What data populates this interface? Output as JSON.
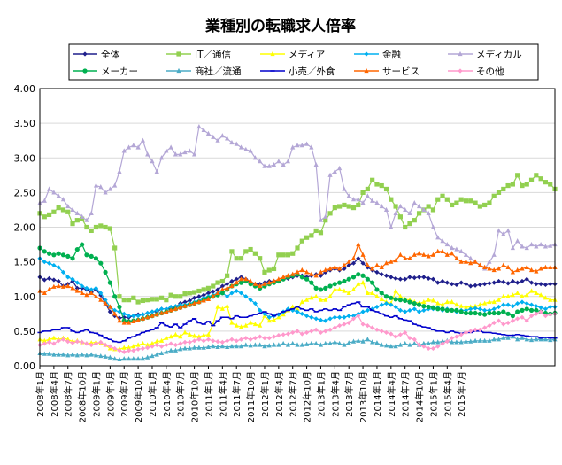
{
  "chart_data": {
    "type": "line",
    "title": "業種別の転職求人倍率",
    "ylim": [
      0,
      4.0
    ],
    "yticks": [
      "0.00",
      "0.50",
      "1.00",
      "1.50",
      "2.00",
      "2.50",
      "3.00",
      "3.50",
      "4.00"
    ],
    "xticks": [
      "2008年1月",
      "2008年4月",
      "2008年7月",
      "2008年10月",
      "2009年1月",
      "2009年4月",
      "2009年7月",
      "2009年10月",
      "2010年1月",
      "2010年4月",
      "2010年7月",
      "2010年10月",
      "2011年1月",
      "2011年4月",
      "2011年7月",
      "2011年10月",
      "2012年1月",
      "2012年4月",
      "2012年7月",
      "2012年10月",
      "2013年1月",
      "2013年4月",
      "2013年7月",
      "2013年10月",
      "2014年1月",
      "2014年4月",
      "2014年7月",
      "2014年10月",
      "2015年1月",
      "2015年4月",
      "2015年7月"
    ],
    "grid": true,
    "legend_position": "top",
    "series": [
      {
        "name": "全体",
        "color": "#1f1f8c",
        "marker": "diamond",
        "values": [
          1.28,
          1.24,
          1.26,
          1.24,
          1.22,
          1.15,
          1.18,
          1.22,
          1.12,
          1.12,
          1.1,
          1.06,
          1.1,
          1.02,
          0.9,
          0.78,
          0.72,
          0.69,
          0.7,
          0.7,
          0.72,
          0.74,
          0.74,
          0.76,
          0.78,
          0.78,
          0.82,
          0.82,
          0.82,
          0.85,
          0.9,
          0.92,
          0.94,
          0.98,
          1.0,
          1.02,
          1.05,
          1.07,
          1.1,
          1.15,
          1.18,
          1.22,
          1.25,
          1.28,
          1.25,
          1.2,
          1.18,
          1.18,
          1.2,
          1.22,
          1.22,
          1.22,
          1.25,
          1.26,
          1.28,
          1.3,
          1.3,
          1.28,
          1.3,
          1.32,
          1.3,
          1.35,
          1.38,
          1.4,
          1.38,
          1.4,
          1.45,
          1.48,
          1.55,
          1.48,
          1.42,
          1.38,
          1.35,
          1.32,
          1.3,
          1.28,
          1.26,
          1.25,
          1.25,
          1.28,
          1.27,
          1.28,
          1.28,
          1.26,
          1.25,
          1.2,
          1.22,
          1.2,
          1.18,
          1.17,
          1.2,
          1.18,
          1.15,
          1.16,
          1.17,
          1.18,
          1.19,
          1.2,
          1.22,
          1.21,
          1.19,
          1.22,
          1.2,
          1.22,
          1.25,
          1.2,
          1.18,
          1.18,
          1.17,
          1.18,
          1.18
        ]
      },
      {
        "name": "IT／通信",
        "color": "#92d050",
        "marker": "square",
        "values": [
          2.2,
          2.15,
          2.18,
          2.22,
          2.28,
          2.25,
          2.22,
          2.05,
          2.1,
          2.12,
          2.0,
          1.95,
          2.0,
          2.02,
          2.0,
          1.98,
          1.7,
          1.0,
          0.95,
          0.95,
          0.98,
          0.92,
          0.94,
          0.95,
          0.96,
          0.96,
          0.98,
          0.95,
          1.02,
          1.0,
          1.0,
          1.04,
          1.05,
          1.06,
          1.08,
          1.1,
          1.12,
          1.15,
          1.2,
          1.22,
          1.3,
          1.65,
          1.55,
          1.55,
          1.65,
          1.68,
          1.62,
          1.55,
          1.35,
          1.38,
          1.4,
          1.6,
          1.6,
          1.6,
          1.62,
          1.7,
          1.8,
          1.85,
          1.88,
          1.95,
          1.92,
          2.1,
          2.2,
          2.28,
          2.3,
          2.32,
          2.3,
          2.28,
          2.32,
          2.5,
          2.55,
          2.68,
          2.62,
          2.6,
          2.55,
          2.4,
          2.3,
          2.15,
          2.0,
          2.05,
          2.1,
          2.2,
          2.25,
          2.3,
          2.25,
          2.4,
          2.45,
          2.4,
          2.32,
          2.35,
          2.4,
          2.38,
          2.38,
          2.35,
          2.3,
          2.32,
          2.35,
          2.45,
          2.5,
          2.55,
          2.6,
          2.62,
          2.75,
          2.6,
          2.62,
          2.68,
          2.75,
          2.7,
          2.65,
          2.62,
          2.55
        ]
      },
      {
        "name": "メディア",
        "color": "#ffff00",
        "marker": "triangle",
        "values": [
          0.38,
          0.36,
          0.38,
          0.4,
          0.38,
          0.4,
          0.38,
          0.35,
          0.36,
          0.34,
          0.32,
          0.33,
          0.34,
          0.32,
          0.3,
          0.25,
          0.24,
          0.24,
          0.26,
          0.26,
          0.28,
          0.3,
          0.32,
          0.3,
          0.32,
          0.35,
          0.36,
          0.4,
          0.42,
          0.45,
          0.42,
          0.48,
          0.45,
          0.43,
          0.42,
          0.44,
          0.45,
          0.6,
          0.85,
          0.82,
          0.86,
          0.62,
          0.58,
          0.56,
          0.58,
          0.62,
          0.6,
          0.58,
          0.72,
          0.65,
          0.66,
          0.7,
          0.74,
          0.8,
          0.85,
          0.82,
          0.92,
          0.95,
          0.98,
          1.0,
          0.95,
          0.95,
          1.0,
          1.1,
          1.1,
          1.08,
          1.05,
          1.1,
          1.18,
          1.2,
          1.05,
          1.05,
          1.0,
          0.96,
          0.92,
          0.9,
          1.08,
          1.0,
          0.96,
          0.95,
          0.92,
          0.9,
          0.92,
          0.95,
          0.94,
          0.9,
          0.88,
          0.92,
          0.92,
          0.88,
          0.86,
          0.85,
          0.85,
          0.86,
          0.88,
          0.9,
          0.92,
          0.92,
          0.95,
          1.0,
          1.0,
          1.02,
          1.05,
          1.0,
          1.02,
          1.08,
          1.05,
          1.02,
          0.98,
          0.95,
          0.95
        ]
      },
      {
        "name": "金融",
        "color": "#00b0f0",
        "marker": "diamond",
        "values": [
          1.55,
          1.5,
          1.48,
          1.45,
          1.42,
          1.35,
          1.28,
          1.25,
          1.2,
          1.15,
          1.12,
          1.1,
          1.12,
          1.05,
          0.95,
          0.85,
          0.8,
          0.78,
          0.75,
          0.72,
          0.72,
          0.72,
          0.74,
          0.76,
          0.78,
          0.8,
          0.82,
          0.82,
          0.85,
          0.86,
          0.88,
          0.88,
          0.9,
          0.92,
          0.94,
          0.98,
          1.0,
          1.02,
          1.05,
          1.05,
          1.0,
          1.05,
          1.08,
          1.05,
          1.0,
          0.95,
          0.9,
          0.8,
          0.75,
          0.7,
          0.72,
          0.74,
          0.78,
          0.82,
          0.8,
          0.78,
          0.75,
          0.72,
          0.7,
          0.68,
          0.66,
          0.65,
          0.68,
          0.7,
          0.7,
          0.7,
          0.72,
          0.72,
          0.75,
          0.78,
          0.8,
          0.82,
          0.85,
          0.88,
          0.9,
          0.88,
          0.85,
          0.8,
          0.78,
          0.8,
          0.82,
          0.78,
          0.8,
          0.82,
          0.82,
          0.84,
          0.8,
          0.82,
          0.8,
          0.78,
          0.8,
          0.8,
          0.82,
          0.83,
          0.82,
          0.8,
          0.8,
          0.82,
          0.85,
          0.88,
          0.88,
          0.86,
          0.9,
          0.92,
          0.9,
          0.88,
          0.86,
          0.84,
          0.82,
          0.85,
          0.85
        ]
      },
      {
        "name": "メディカル",
        "color": "#b4a7d6",
        "marker": "triangle",
        "values": [
          2.35,
          2.38,
          2.55,
          2.5,
          2.45,
          2.4,
          2.3,
          2.25,
          2.2,
          2.15,
          2.1,
          2.2,
          2.6,
          2.58,
          2.5,
          2.55,
          2.6,
          2.8,
          3.1,
          3.15,
          3.18,
          3.15,
          3.25,
          3.05,
          2.95,
          2.8,
          3.0,
          3.1,
          3.15,
          3.05,
          3.05,
          3.08,
          3.1,
          3.05,
          3.45,
          3.4,
          3.35,
          3.3,
          3.25,
          3.32,
          3.28,
          3.22,
          3.2,
          3.15,
          3.12,
          3.1,
          3.0,
          2.95,
          2.88,
          2.88,
          2.9,
          2.95,
          2.9,
          2.95,
          3.15,
          3.18,
          3.18,
          3.2,
          3.15,
          2.9,
          2.1,
          2.15,
          2.75,
          2.8,
          2.85,
          2.55,
          2.45,
          2.4,
          2.4,
          2.35,
          2.45,
          2.38,
          2.35,
          2.3,
          2.25,
          2.0,
          2.2,
          2.3,
          2.25,
          2.2,
          2.35,
          2.3,
          2.25,
          2.2,
          2.0,
          1.85,
          1.8,
          1.75,
          1.7,
          1.68,
          1.65,
          1.6,
          1.55,
          1.5,
          1.45,
          1.4,
          1.5,
          1.6,
          1.95,
          1.9,
          1.95,
          1.7,
          1.8,
          1.72,
          1.7,
          1.75,
          1.72,
          1.75,
          1.72,
          1.73,
          1.75
        ]
      },
      {
        "name": "メーカー",
        "color": "#00b050",
        "marker": "circle",
        "values": [
          1.7,
          1.65,
          1.62,
          1.6,
          1.62,
          1.6,
          1.58,
          1.55,
          1.68,
          1.75,
          1.6,
          1.58,
          1.55,
          1.48,
          1.35,
          1.2,
          1.0,
          0.85,
          0.65,
          0.64,
          0.65,
          0.66,
          0.68,
          0.7,
          0.72,
          0.74,
          0.76,
          0.78,
          0.8,
          0.82,
          0.84,
          0.86,
          0.88,
          0.9,
          0.92,
          0.95,
          0.98,
          1.0,
          1.02,
          1.05,
          1.1,
          1.15,
          1.18,
          1.2,
          1.22,
          1.18,
          1.15,
          1.12,
          1.15,
          1.18,
          1.2,
          1.22,
          1.25,
          1.28,
          1.3,
          1.32,
          1.28,
          1.25,
          1.2,
          1.12,
          1.1,
          1.12,
          1.15,
          1.18,
          1.2,
          1.22,
          1.25,
          1.28,
          1.32,
          1.3,
          1.25,
          1.2,
          1.1,
          1.05,
          1.0,
          0.98,
          0.96,
          0.95,
          0.94,
          0.92,
          0.9,
          0.88,
          0.86,
          0.85,
          0.84,
          0.82,
          0.82,
          0.8,
          0.8,
          0.8,
          0.78,
          0.76,
          0.76,
          0.76,
          0.75,
          0.74,
          0.76,
          0.76,
          0.76,
          0.78,
          0.75,
          0.72,
          0.78,
          0.8,
          0.82,
          0.8,
          0.8,
          0.78,
          0.76,
          0.75,
          0.76
        ]
      },
      {
        "name": "商社／流通",
        "color": "#4bacc6",
        "marker": "triangle",
        "values": [
          0.18,
          0.17,
          0.17,
          0.16,
          0.16,
          0.16,
          0.15,
          0.16,
          0.15,
          0.16,
          0.15,
          0.16,
          0.15,
          0.14,
          0.13,
          0.12,
          0.1,
          0.09,
          0.1,
          0.1,
          0.1,
          0.1,
          0.1,
          0.12,
          0.14,
          0.16,
          0.18,
          0.2,
          0.22,
          0.22,
          0.24,
          0.25,
          0.25,
          0.26,
          0.26,
          0.26,
          0.27,
          0.28,
          0.27,
          0.28,
          0.27,
          0.28,
          0.28,
          0.28,
          0.3,
          0.29,
          0.3,
          0.3,
          0.28,
          0.29,
          0.3,
          0.3,
          0.32,
          0.3,
          0.32,
          0.3,
          0.3,
          0.31,
          0.32,
          0.32,
          0.3,
          0.32,
          0.32,
          0.34,
          0.32,
          0.3,
          0.33,
          0.35,
          0.36,
          0.35,
          0.38,
          0.34,
          0.33,
          0.3,
          0.29,
          0.28,
          0.28,
          0.3,
          0.32,
          0.3,
          0.32,
          0.3,
          0.32,
          0.32,
          0.34,
          0.34,
          0.35,
          0.36,
          0.34,
          0.34,
          0.34,
          0.35,
          0.35,
          0.36,
          0.36,
          0.36,
          0.36,
          0.38,
          0.38,
          0.4,
          0.4,
          0.42,
          0.38,
          0.4,
          0.38,
          0.37,
          0.38,
          0.38,
          0.38,
          0.37,
          0.38
        ]
      },
      {
        "name": "小売／外食",
        "color": "#0000cc",
        "marker": "dash",
        "values": [
          0.48,
          0.5,
          0.5,
          0.52,
          0.52,
          0.55,
          0.55,
          0.5,
          0.48,
          0.5,
          0.52,
          0.48,
          0.47,
          0.44,
          0.4,
          0.38,
          0.35,
          0.34,
          0.36,
          0.4,
          0.42,
          0.45,
          0.48,
          0.5,
          0.52,
          0.55,
          0.62,
          0.58,
          0.56,
          0.6,
          0.55,
          0.6,
          0.65,
          0.68,
          0.62,
          0.6,
          0.64,
          0.58,
          0.65,
          0.7,
          0.7,
          0.68,
          0.72,
          0.7,
          0.7,
          0.72,
          0.74,
          0.76,
          0.78,
          0.75,
          0.72,
          0.75,
          0.78,
          0.8,
          0.82,
          0.85,
          0.82,
          0.8,
          0.82,
          0.78,
          0.8,
          0.82,
          0.8,
          0.82,
          0.8,
          0.85,
          0.88,
          0.9,
          0.92,
          0.85,
          0.85,
          0.8,
          0.78,
          0.75,
          0.72,
          0.7,
          0.72,
          0.68,
          0.66,
          0.65,
          0.6,
          0.58,
          0.56,
          0.55,
          0.52,
          0.5,
          0.5,
          0.48,
          0.5,
          0.48,
          0.47,
          0.48,
          0.48,
          0.5,
          0.5,
          0.48,
          0.48,
          0.47,
          0.46,
          0.45,
          0.44,
          0.44,
          0.45,
          0.44,
          0.43,
          0.42,
          0.42,
          0.4,
          0.41,
          0.4,
          0.4
        ]
      },
      {
        "name": "サービス",
        "color": "#ff6600",
        "marker": "triangle",
        "values": [
          1.08,
          1.05,
          1.1,
          1.14,
          1.15,
          1.14,
          1.15,
          1.12,
          1.08,
          1.05,
          1.02,
          1.05,
          1.0,
          0.95,
          0.9,
          0.85,
          0.75,
          0.65,
          0.62,
          0.62,
          0.64,
          0.66,
          0.68,
          0.7,
          0.72,
          0.74,
          0.76,
          0.78,
          0.8,
          0.82,
          0.84,
          0.86,
          0.88,
          0.9,
          0.92,
          0.94,
          0.96,
          1.0,
          1.05,
          1.1,
          1.12,
          1.15,
          1.2,
          1.25,
          1.25,
          1.22,
          1.18,
          1.15,
          1.18,
          1.2,
          1.22,
          1.25,
          1.28,
          1.3,
          1.32,
          1.35,
          1.38,
          1.35,
          1.32,
          1.3,
          1.35,
          1.38,
          1.4,
          1.42,
          1.4,
          1.45,
          1.5,
          1.55,
          1.75,
          1.6,
          1.45,
          1.4,
          1.45,
          1.42,
          1.48,
          1.5,
          1.52,
          1.6,
          1.55,
          1.55,
          1.6,
          1.62,
          1.6,
          1.58,
          1.6,
          1.65,
          1.65,
          1.6,
          1.62,
          1.55,
          1.5,
          1.5,
          1.48,
          1.5,
          1.45,
          1.42,
          1.4,
          1.38,
          1.4,
          1.45,
          1.42,
          1.35,
          1.38,
          1.4,
          1.42,
          1.38,
          1.36,
          1.4,
          1.42,
          1.42,
          1.42
        ]
      },
      {
        "name": "その他",
        "color": "#ff99cc",
        "marker": "diamond",
        "values": [
          0.3,
          0.32,
          0.34,
          0.32,
          0.36,
          0.38,
          0.35,
          0.33,
          0.35,
          0.34,
          0.32,
          0.3,
          0.32,
          0.34,
          0.3,
          0.28,
          0.25,
          0.22,
          0.2,
          0.22,
          0.22,
          0.24,
          0.25,
          0.26,
          0.28,
          0.3,
          0.28,
          0.3,
          0.32,
          0.3,
          0.32,
          0.34,
          0.34,
          0.36,
          0.38,
          0.36,
          0.38,
          0.36,
          0.35,
          0.34,
          0.36,
          0.38,
          0.36,
          0.38,
          0.4,
          0.38,
          0.4,
          0.42,
          0.4,
          0.4,
          0.42,
          0.44,
          0.45,
          0.46,
          0.48,
          0.5,
          0.46,
          0.48,
          0.5,
          0.52,
          0.48,
          0.5,
          0.52,
          0.55,
          0.58,
          0.6,
          0.62,
          0.68,
          0.72,
          0.6,
          0.58,
          0.55,
          0.52,
          0.5,
          0.48,
          0.46,
          0.42,
          0.45,
          0.48,
          0.4,
          0.38,
          0.3,
          0.28,
          0.25,
          0.25,
          0.28,
          0.32,
          0.35,
          0.4,
          0.42,
          0.45,
          0.48,
          0.5,
          0.52,
          0.52,
          0.55,
          0.58,
          0.62,
          0.65,
          0.6,
          0.62,
          0.65,
          0.68,
          0.7,
          0.65,
          0.72,
          0.75,
          0.78,
          0.72,
          0.74,
          0.75
        ]
      }
    ]
  }
}
